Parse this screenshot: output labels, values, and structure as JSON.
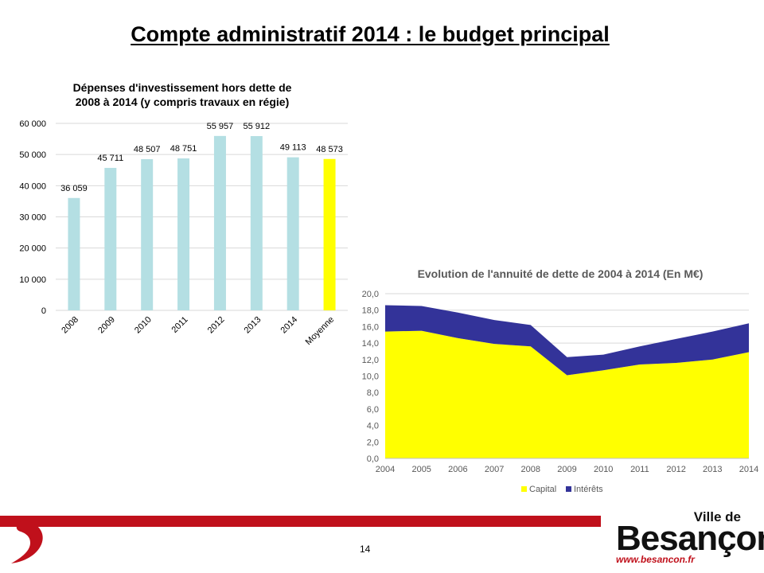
{
  "slide": {
    "title": "Compte administratif 2014 : le budget principal",
    "page_number": "14"
  },
  "brand": {
    "prefix": "Ville de",
    "name": "Besançon",
    "url": "www.besancon.fr",
    "accent_color": "#c0101b"
  },
  "chart_data": [
    {
      "type": "bar",
      "title": "Dépenses d'investissement hors dette de 2008 à 2014 (y compris travaux en régie)",
      "title_lines": [
        "Dépenses d'investissement hors dette de",
        "2008 à 2014 (y compris travaux en régie)"
      ],
      "categories": [
        "2008",
        "2009",
        "2010",
        "2011",
        "2012",
        "2013",
        "2014",
        "Moyenne"
      ],
      "values": [
        36059,
        45711,
        48507,
        48751,
        55957,
        55912,
        49113,
        48573
      ],
      "value_labels": [
        "36 059",
        "45 711",
        "48 507",
        "48 751",
        "55 957",
        "55 912",
        "49 113",
        "48 573"
      ],
      "colors": [
        "#b4dfe3",
        "#b4dfe3",
        "#b4dfe3",
        "#b4dfe3",
        "#b4dfe3",
        "#b4dfe3",
        "#b4dfe3",
        "#ffff00"
      ],
      "ylim": [
        0,
        60000
      ],
      "yticks": [
        0,
        10000,
        20000,
        30000,
        40000,
        50000,
        60000
      ],
      "ytick_labels": [
        "0",
        "10 000",
        "20 000",
        "30 000",
        "40 000",
        "50 000",
        "60 000"
      ],
      "grid": true,
      "legend": "none"
    },
    {
      "type": "area",
      "stacked": true,
      "title": "Evolution de l'annuité de dette de 2004 à 2014 (En M€)",
      "x": [
        "2004",
        "2005",
        "2006",
        "2007",
        "2008",
        "2009",
        "2010",
        "2011",
        "2012",
        "2013",
        "2014"
      ],
      "series": [
        {
          "name": "Capital",
          "color": "#ffff00",
          "values": [
            15.4,
            15.5,
            14.6,
            13.9,
            13.6,
            10.1,
            10.7,
            11.4,
            11.6,
            12.0,
            12.9
          ]
        },
        {
          "name": "Intérêts",
          "color": "#333399",
          "values": [
            3.2,
            3.0,
            3.1,
            2.9,
            2.6,
            2.2,
            1.9,
            2.2,
            2.9,
            3.4,
            3.5
          ]
        }
      ],
      "ylim": [
        0,
        20
      ],
      "yticks": [
        0,
        2,
        4,
        6,
        8,
        10,
        12,
        14,
        16,
        18,
        20
      ],
      "ytick_labels": [
        "0,0",
        "2,0",
        "4,0",
        "6,0",
        "8,0",
        "10,0",
        "12,0",
        "14,0",
        "16,0",
        "18,0",
        "20,0"
      ],
      "grid": true,
      "legend": "bottom"
    }
  ]
}
